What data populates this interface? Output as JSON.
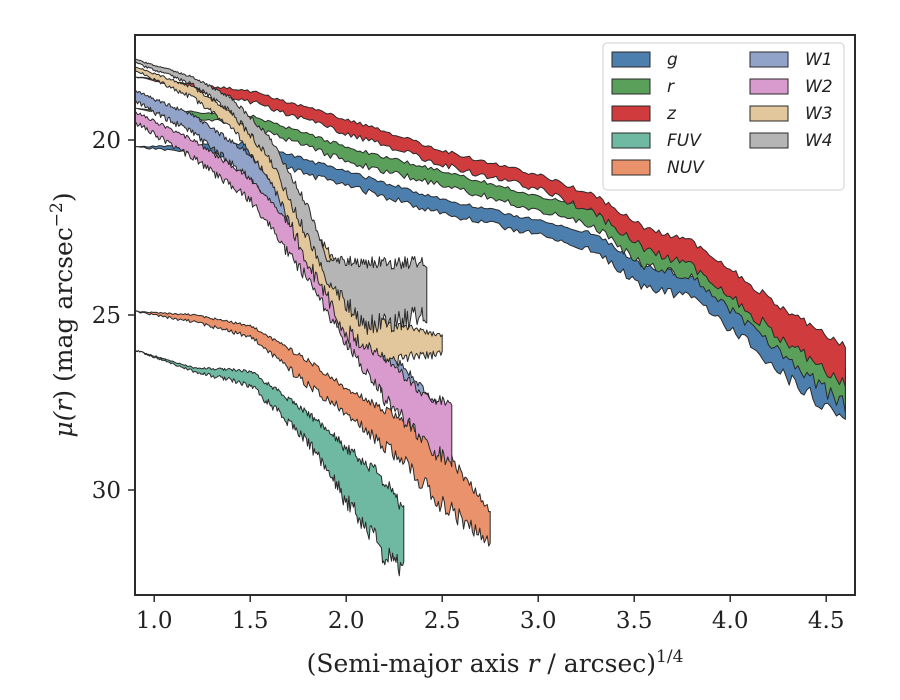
{
  "chart_data": {
    "type": "area",
    "xlabel": "(Semi-major axis r / arcsec)",
    "xlabel_parts": {
      "pre": "(Semi-major axis ",
      "var": "r",
      "post": " / arcsec)",
      "sup": "1/4"
    },
    "ylabel": "μ(r) (mag arcsec−2)",
    "ylabel_parts": {
      "pre": "μ(",
      "var": "r",
      "post": ") (mag arcsec",
      "sup": "−2",
      "close": ")"
    },
    "xlim": [
      0.9,
      4.65
    ],
    "ylim": [
      33.0,
      17.0
    ],
    "y_inverted": true,
    "xticks": [
      1.0,
      1.5,
      2.0,
      2.5,
      3.0,
      3.5,
      4.0,
      4.5
    ],
    "xtick_labels": [
      "1.0",
      "1.5",
      "2.0",
      "2.5",
      "3.0",
      "3.5",
      "4.0",
      "4.5"
    ],
    "yticks": [
      20,
      25,
      30
    ],
    "ytick_labels": [
      "20",
      "25",
      "30"
    ],
    "grid": false,
    "legend_position": "top-right",
    "legend_columns": 2,
    "series": [
      {
        "name": "g",
        "color": "#4c7fae",
        "seed": 11,
        "upper": [
          [
            0.9,
            20.2
          ],
          [
            1.5,
            20.1
          ],
          [
            2.0,
            20.9
          ],
          [
            2.5,
            21.7
          ],
          [
            3.0,
            22.3
          ],
          [
            3.3,
            22.7
          ],
          [
            3.55,
            23.6
          ],
          [
            3.8,
            23.9
          ],
          [
            4.05,
            24.8
          ],
          [
            4.3,
            25.8
          ],
          [
            4.6,
            26.8
          ]
        ],
        "lower": [
          [
            0.9,
            20.2
          ],
          [
            1.5,
            20.5
          ],
          [
            2.0,
            21.3
          ],
          [
            2.5,
            22.1
          ],
          [
            3.0,
            22.7
          ],
          [
            3.3,
            23.2
          ],
          [
            3.55,
            24.2
          ],
          [
            3.8,
            24.5
          ],
          [
            4.05,
            25.6
          ],
          [
            4.3,
            26.8
          ],
          [
            4.6,
            28.0
          ]
        ]
      },
      {
        "name": "r",
        "color": "#5a9f5a",
        "seed": 23,
        "upper": [
          [
            0.9,
            19.1
          ],
          [
            1.5,
            19.3
          ],
          [
            2.0,
            20.2
          ],
          [
            2.5,
            20.9
          ],
          [
            3.0,
            21.6
          ],
          [
            3.3,
            22.0
          ],
          [
            3.55,
            22.9
          ],
          [
            3.8,
            23.3
          ],
          [
            4.05,
            24.3
          ],
          [
            4.3,
            25.3
          ],
          [
            4.6,
            26.4
          ]
        ],
        "lower": [
          [
            0.9,
            19.1
          ],
          [
            1.5,
            19.6
          ],
          [
            2.0,
            20.6
          ],
          [
            2.5,
            21.3
          ],
          [
            3.0,
            22.0
          ],
          [
            3.3,
            22.5
          ],
          [
            3.55,
            23.6
          ],
          [
            3.8,
            23.9
          ],
          [
            4.05,
            25.1
          ],
          [
            4.3,
            26.3
          ],
          [
            4.6,
            27.6
          ]
        ]
      },
      {
        "name": "z",
        "color": "#d03c3e",
        "seed": 37,
        "upper": [
          [
            0.9,
            18.2
          ],
          [
            1.5,
            18.6
          ],
          [
            2.0,
            19.4
          ],
          [
            2.5,
            20.3
          ],
          [
            3.0,
            21.0
          ],
          [
            3.3,
            21.6
          ],
          [
            3.55,
            22.5
          ],
          [
            3.8,
            22.9
          ],
          [
            4.05,
            23.9
          ],
          [
            4.3,
            24.9
          ],
          [
            4.6,
            25.9
          ]
        ],
        "lower": [
          [
            0.9,
            18.2
          ],
          [
            1.5,
            18.9
          ],
          [
            2.0,
            19.8
          ],
          [
            2.5,
            20.7
          ],
          [
            3.0,
            21.4
          ],
          [
            3.3,
            22.1
          ],
          [
            3.55,
            23.1
          ],
          [
            3.8,
            23.6
          ],
          [
            4.05,
            24.7
          ],
          [
            4.3,
            25.8
          ],
          [
            4.6,
            27.0
          ]
        ]
      },
      {
        "name": "FUV",
        "color": "#6fb8a2",
        "seed": 41,
        "upper": [
          [
            0.9,
            26.0
          ],
          [
            1.2,
            26.5
          ],
          [
            1.5,
            26.6
          ],
          [
            1.8,
            27.8
          ],
          [
            2.0,
            28.8
          ],
          [
            2.2,
            29.7
          ],
          [
            2.3,
            30.6
          ]
        ],
        "lower": [
          [
            0.9,
            26.0
          ],
          [
            1.2,
            26.6
          ],
          [
            1.5,
            27.0
          ],
          [
            1.8,
            28.6
          ],
          [
            2.0,
            30.3
          ],
          [
            2.2,
            31.8
          ],
          [
            2.3,
            32.3
          ]
        ]
      },
      {
        "name": "NUV",
        "color": "#e9926c",
        "seed": 53,
        "upper": [
          [
            0.9,
            24.9
          ],
          [
            1.2,
            25.0
          ],
          [
            1.5,
            25.3
          ],
          [
            1.8,
            26.3
          ],
          [
            2.0,
            27.1
          ],
          [
            2.3,
            28.0
          ],
          [
            2.5,
            28.8
          ],
          [
            2.75,
            30.6
          ]
        ],
        "lower": [
          [
            0.9,
            24.9
          ],
          [
            1.2,
            25.2
          ],
          [
            1.5,
            25.6
          ],
          [
            1.8,
            27.0
          ],
          [
            2.0,
            27.8
          ],
          [
            2.3,
            29.2
          ],
          [
            2.5,
            30.4
          ],
          [
            2.75,
            31.5
          ]
        ]
      },
      {
        "name": "W1",
        "color": "#92a3c9",
        "seed": 67,
        "upper": [
          [
            0.9,
            18.6
          ],
          [
            1.2,
            19.3
          ],
          [
            1.5,
            20.4
          ],
          [
            1.8,
            22.5
          ],
          [
            2.0,
            24.4
          ],
          [
            2.2,
            25.9
          ],
          [
            2.5,
            27.7
          ]
        ],
        "lower": [
          [
            0.9,
            18.9
          ],
          [
            1.2,
            19.8
          ],
          [
            1.5,
            21.1
          ],
          [
            1.8,
            23.3
          ],
          [
            2.0,
            25.5
          ],
          [
            2.2,
            27.2
          ],
          [
            2.5,
            28.5
          ]
        ]
      },
      {
        "name": "W2",
        "color": "#d99bcd",
        "seed": 79,
        "upper": [
          [
            0.9,
            19.2
          ],
          [
            1.2,
            20.0
          ],
          [
            1.5,
            21.1
          ],
          [
            1.8,
            23.0
          ],
          [
            2.0,
            25.0
          ],
          [
            2.2,
            26.2
          ],
          [
            2.4,
            27.3
          ],
          [
            2.55,
            27.5
          ]
        ],
        "lower": [
          [
            0.9,
            19.5
          ],
          [
            1.2,
            20.5
          ],
          [
            1.5,
            21.7
          ],
          [
            1.8,
            24.0
          ],
          [
            2.0,
            25.8
          ],
          [
            2.2,
            27.4
          ],
          [
            2.4,
            28.6
          ],
          [
            2.55,
            29.2
          ]
        ]
      },
      {
        "name": "W3",
        "color": "#e3c79c",
        "seed": 83,
        "upper": [
          [
            0.9,
            17.9
          ],
          [
            1.2,
            18.5
          ],
          [
            1.4,
            19.2
          ],
          [
            1.6,
            20.4
          ],
          [
            1.8,
            22.3
          ],
          [
            2.0,
            24.0
          ],
          [
            2.2,
            25.2
          ],
          [
            2.5,
            25.6
          ]
        ],
        "lower": [
          [
            0.9,
            18.0
          ],
          [
            1.2,
            18.8
          ],
          [
            1.4,
            19.6
          ],
          [
            1.6,
            21.1
          ],
          [
            1.8,
            23.5
          ],
          [
            2.0,
            25.5
          ],
          [
            2.2,
            26.3
          ],
          [
            2.5,
            26.1
          ]
        ]
      },
      {
        "name": "W4",
        "color": "#b5b5b5",
        "seed": 97,
        "upper": [
          [
            0.9,
            17.7
          ],
          [
            1.2,
            18.2
          ],
          [
            1.4,
            18.8
          ],
          [
            1.6,
            19.9
          ],
          [
            1.8,
            21.9
          ],
          [
            1.9,
            23.4
          ],
          [
            2.1,
            23.5
          ],
          [
            2.42,
            23.5
          ]
        ],
        "lower": [
          [
            0.9,
            17.8
          ],
          [
            1.2,
            18.4
          ],
          [
            1.4,
            19.2
          ],
          [
            1.6,
            20.5
          ],
          [
            1.8,
            22.8
          ],
          [
            1.9,
            24.0
          ],
          [
            2.1,
            25.3
          ],
          [
            2.42,
            25.0
          ]
        ]
      }
    ]
  }
}
